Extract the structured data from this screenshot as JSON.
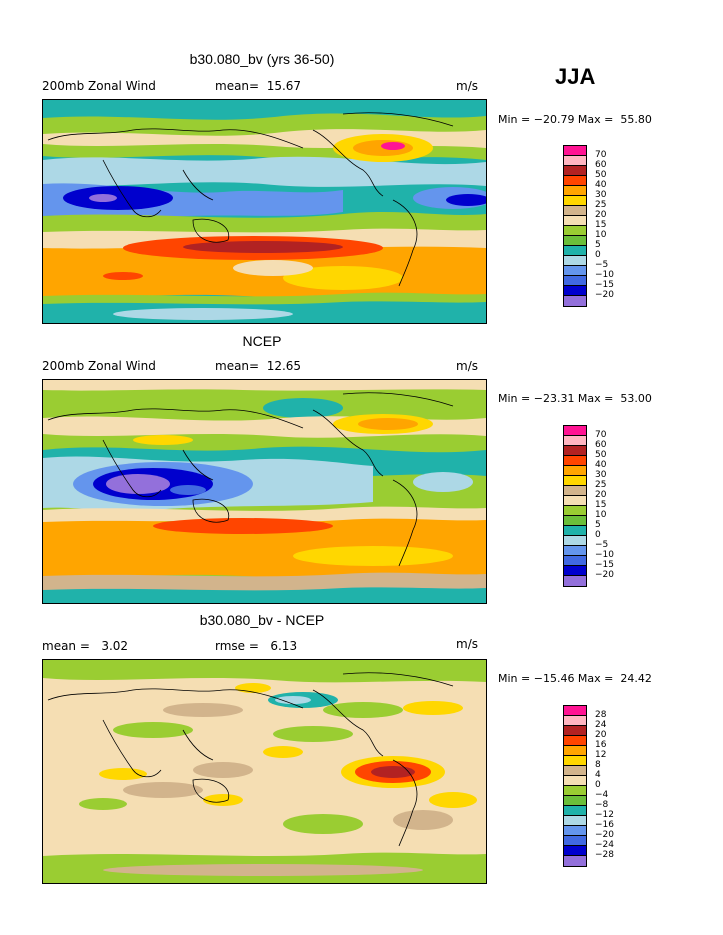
{
  "season": "JJA",
  "panels": [
    {
      "title": "b30.080_bv (yrs 36-50)",
      "left_label": "200mb Zonal Wind",
      "stat": "mean=  15.67",
      "units": "m/s",
      "minmax": "Min = −20.79 Max =  55.80",
      "legend": {
        "labels": [
          "70",
          "60",
          "50",
          "40",
          "30",
          "25",
          "20",
          "15",
          "10",
          "5",
          "0",
          "−5",
          "−10",
          "−15",
          "−20"
        ],
        "colors": [
          "#ff1493",
          "#ffb6c1",
          "#b22222",
          "#ff4500",
          "#ffa500",
          "#ffd700",
          "#d2b48c",
          "#f5deb3",
          "#9acd32",
          "#6bbf3a",
          "#20b2aa",
          "#add8e6",
          "#6495ed",
          "#4169e1",
          "#0000cd",
          "#9370db"
        ]
      }
    },
    {
      "title": "NCEP",
      "left_label": "200mb Zonal Wind",
      "stat": "mean=  12.65",
      "units": "m/s",
      "minmax": "Min = −23.31 Max =  53.00",
      "legend": {
        "labels": [
          "70",
          "60",
          "50",
          "40",
          "30",
          "25",
          "20",
          "15",
          "10",
          "5",
          "0",
          "−5",
          "−10",
          "−15",
          "−20"
        ],
        "colors": [
          "#ff1493",
          "#ffb6c1",
          "#b22222",
          "#ff4500",
          "#ffa500",
          "#ffd700",
          "#d2b48c",
          "#f5deb3",
          "#9acd32",
          "#6bbf3a",
          "#20b2aa",
          "#add8e6",
          "#6495ed",
          "#4169e1",
          "#0000cd",
          "#9370db"
        ]
      }
    },
    {
      "title": "b30.080_bv - NCEP",
      "left_label": "mean =   3.02",
      "stat": "rmse =   6.13",
      "units": "m/s",
      "minmax": "Min = −15.46 Max =  24.42",
      "legend": {
        "labels": [
          "28",
          "24",
          "20",
          "16",
          "12",
          "8",
          "4",
          "0",
          "−4",
          "−8",
          "−12",
          "−16",
          "−20",
          "−24",
          "−28"
        ],
        "colors": [
          "#ff1493",
          "#ffb6c1",
          "#b22222",
          "#ff4500",
          "#ffa500",
          "#ffd700",
          "#d2b48c",
          "#f5deb3",
          "#9acd32",
          "#6bbf3a",
          "#20b2aa",
          "#add8e6",
          "#6495ed",
          "#4169e1",
          "#0000cd",
          "#9370db"
        ]
      }
    }
  ]
}
